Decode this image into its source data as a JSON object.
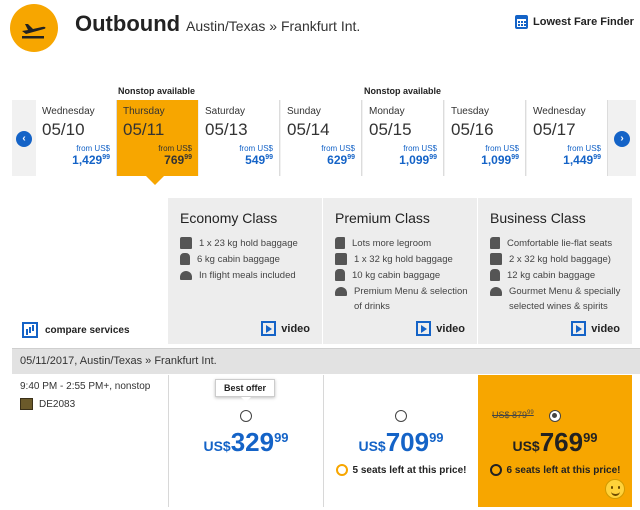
{
  "header": {
    "logo_icon": "airplane-takeoff-icon",
    "title": "Outbound",
    "route": "Austin/Texas » Frankfurt Int.",
    "lowest_fare_label": "Lowest Fare Finder",
    "lowest_fare_icon": "calendar-icon"
  },
  "nonstop_label": "Nonstop available",
  "dates": [
    {
      "weekday": "Wednesday",
      "date": "05/10",
      "from": "from US$",
      "price": "1,429",
      "cents": "99"
    },
    {
      "weekday": "Thursday",
      "date": "05/11",
      "from": "from US$",
      "price": "769",
      "cents": "99"
    },
    {
      "weekday": "Saturday",
      "date": "05/13",
      "from": "from US$",
      "price": "549",
      "cents": "99"
    },
    {
      "weekday": "Sunday",
      "date": "05/14",
      "from": "from US$",
      "price": "629",
      "cents": "99"
    },
    {
      "weekday": "Monday",
      "date": "05/15",
      "from": "from US$",
      "price": "1,099",
      "cents": "99"
    },
    {
      "weekday": "Tuesday",
      "date": "05/16",
      "from": "from US$",
      "price": "1,099",
      "cents": "99"
    },
    {
      "weekday": "Wednesday",
      "date": "05/17",
      "from": "from US$",
      "price": "1,449",
      "cents": "99"
    }
  ],
  "nav": {
    "prev": "‹",
    "next": "›"
  },
  "compare_label": "compare services",
  "video_label": "video",
  "classes": [
    {
      "name": "Economy Class",
      "features": [
        "1 x 23 kg hold baggage",
        "6 kg cabin baggage",
        "In flight meals included"
      ]
    },
    {
      "name": "Premium Class",
      "features": [
        "Lots more legroom",
        "1 x 32 kg hold baggage",
        "10 kg cabin baggage",
        "Premium Menu & selection",
        "of drinks"
      ]
    },
    {
      "name": "Business Class",
      "features": [
        "Comfortable lie-flat seats",
        "2 x 32 kg hold baggage)",
        "12 kg cabin baggage",
        "Gourmet Menu & specially",
        "selected wines & spirits"
      ]
    }
  ],
  "flight": {
    "header": "05/11/2017, Austin/Texas » Frankfurt Int.",
    "times": "9:40 PM - 2:55 PM+, nonstop",
    "number": "DE2083"
  },
  "fares": [
    {
      "currency": "US$",
      "price": "329",
      "cents": "99",
      "badge": "Best offer",
      "seats": ""
    },
    {
      "currency": "US$",
      "price": "709",
      "cents": "99",
      "seats": "5 seats left at this price!"
    },
    {
      "currency": "US$",
      "price": "769",
      "cents": "99",
      "old_price": "US$ 879",
      "old_cents": "99",
      "seats": "6 seats left at this price!"
    }
  ],
  "colors": {
    "accent": "#f7a600",
    "link": "#1463c7"
  }
}
